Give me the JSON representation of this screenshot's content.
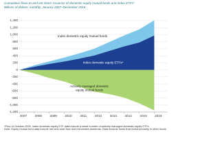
{
  "chart_data": {
    "type": "stacked-area",
    "title": "Cumulative flows to and net share issuance of domestic equity mutual funds and index ETFs*",
    "subtitle": "Billions of dollars; monthly, January 2007–December 2016",
    "x": [
      2007,
      2008,
      2009,
      2010,
      2011,
      2012,
      2013,
      2014,
      2015,
      2016
    ],
    "xlim": [
      2007,
      2016.9
    ],
    "xticks": [
      2007,
      2008,
      2009,
      2010,
      2011,
      2012,
      2013,
      2014,
      2015,
      2016
    ],
    "ylim": [
      -1200,
      1400
    ],
    "yticks": [
      {
        "value": -1200,
        "label": "-1,200"
      },
      {
        "value": -1000,
        "label": "-1,000"
      },
      -800,
      -600,
      -400,
      -200,
      0,
      200,
      400,
      600,
      800,
      {
        "value": 1000,
        "label": "1,000"
      },
      {
        "value": 1200,
        "label": "1,200"
      },
      {
        "value": 1400,
        "label": "1,400"
      }
    ],
    "grid": true,
    "series": [
      {
        "name": "Actively managed domestic equity mutual funds",
        "color": "#a9d46f",
        "values": [
          0,
          -100,
          -230,
          -330,
          -480,
          -620,
          -690,
          -790,
          -950,
          -1150
        ]
      },
      {
        "name": "Index domestic equity ETFs*",
        "color": "#1c3f91",
        "values": [
          0,
          90,
          170,
          240,
          320,
          410,
          540,
          670,
          780,
          980
        ]
      },
      {
        "name": "Index domestic equity mutual funds",
        "color": "#7ec6ea",
        "values": [
          0,
          40,
          70,
          110,
          150,
          190,
          250,
          310,
          370,
          430
        ]
      }
    ],
    "footnotes": [
      "*Prior to October 2009, index domestic equity ETF data include a small number of actively managed domestic equity ETFs.",
      "Note: Equity mutual fund data include net new cash flow and reinvested dividends. Data exclude funds that invest primarily in other funds."
    ]
  }
}
